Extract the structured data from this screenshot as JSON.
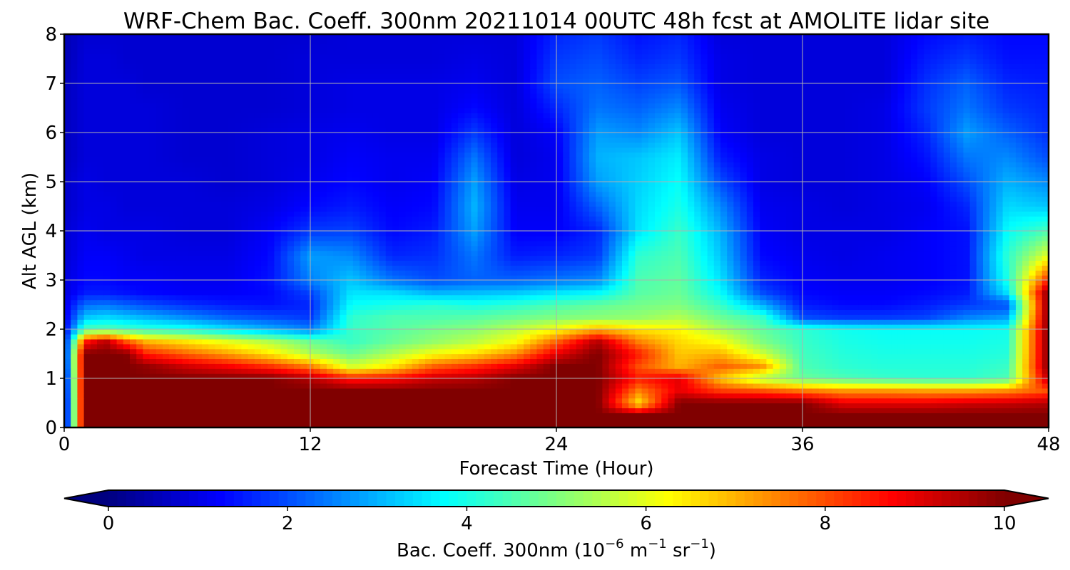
{
  "chart_data": {
    "type": "heatmap",
    "title": "WRF-Chem Bac. Coeff. 300nm  20211014 00UTC 48h fcst at AMOLITE lidar site",
    "xlabel": "Forecast Time (Hour)",
    "ylabel": "Alt AGL (km)",
    "xlim": [
      0,
      48
    ],
    "ylim": [
      0,
      8
    ],
    "x_ticks": [
      0,
      12,
      24,
      36,
      48
    ],
    "x_tick_labels": [
      "0",
      "12",
      "24",
      "36",
      "48"
    ],
    "y_ticks": [
      0,
      1,
      2,
      3,
      4,
      5,
      6,
      7,
      8
    ],
    "y_tick_labels": [
      "0",
      "1",
      "2",
      "3",
      "4",
      "5",
      "6",
      "7",
      "8"
    ],
    "grid": true,
    "colormap": "jet",
    "colorbar": {
      "orientation": "horizontal",
      "extend": "both",
      "range": [
        0,
        10
      ],
      "ticks": [
        0,
        2,
        4,
        6,
        8,
        10
      ],
      "tick_labels": [
        "0",
        "2",
        "4",
        "6",
        "8",
        "10"
      ],
      "label_main": "Bac. Coeff. 300nm  (10",
      "label_exp1": "−6",
      "label_mid": " m",
      "label_exp2": "−1",
      "label_mid2": " sr",
      "label_exp3": "−1",
      "label_end": ")"
    },
    "x_hours": [
      0,
      1,
      2,
      3,
      4,
      6,
      8,
      10,
      12,
      14,
      16,
      18,
      20,
      22,
      24,
      26,
      28,
      30,
      32,
      34,
      36,
      38,
      40,
      42,
      44,
      46,
      48
    ],
    "y_km": [
      0,
      0.25,
      0.5,
      0.75,
      1.0,
      1.25,
      1.5,
      1.75,
      2.0,
      2.25,
      2.5,
      2.75,
      3.0,
      3.5,
      4.0,
      4.5,
      5.0,
      5.5,
      6.0,
      6.5,
      7.0,
      7.5,
      8.0
    ],
    "values": [
      [
        0.5,
        10,
        10,
        10,
        10,
        10,
        10,
        10,
        10,
        10,
        10,
        10,
        10,
        10,
        10,
        10,
        10,
        10,
        10,
        10,
        10,
        10,
        10,
        10,
        10,
        10,
        10
      ],
      [
        0.5,
        10,
        10,
        10,
        10,
        10,
        10,
        10,
        10,
        10,
        10,
        10,
        10,
        10,
        10,
        10,
        10,
        10,
        10,
        10,
        10,
        10,
        10,
        10,
        10,
        10,
        10
      ],
      [
        0.5,
        10,
        10,
        10,
        10,
        10,
        10,
        10,
        10,
        10,
        10,
        10,
        10,
        10,
        10,
        10,
        6.5,
        10,
        10,
        10,
        10,
        9,
        9,
        9,
        9.2,
        9.3,
        9.5
      ],
      [
        0.6,
        10,
        10,
        10,
        10,
        10,
        10,
        10,
        10,
        10,
        10,
        10,
        10,
        10,
        10,
        10,
        7.5,
        9,
        8.2,
        8,
        7.6,
        7.3,
        7.3,
        7.2,
        7.2,
        7.4,
        8
      ],
      [
        0.7,
        10,
        10,
        10,
        10,
        10,
        10,
        10,
        9.5,
        8.5,
        8.7,
        9.3,
        9.5,
        10,
        10,
        10,
        8.5,
        9,
        6.8,
        5.5,
        4.8,
        4.5,
        4.3,
        4.2,
        4.2,
        4.5,
        9.5
      ],
      [
        0.9,
        10,
        10,
        10,
        9.8,
        9.2,
        8.8,
        8.3,
        7.5,
        5.8,
        6.5,
        7.8,
        8.3,
        9,
        10,
        10,
        8,
        7,
        7.8,
        7.3,
        4.5,
        4.2,
        4.1,
        4.1,
        4.1,
        4.3,
        10
      ],
      [
        1.0,
        10,
        10,
        10,
        8.5,
        7.8,
        7.2,
        6.5,
        5.5,
        4.8,
        5.5,
        6.2,
        6.6,
        7.4,
        9,
        10,
        8.5,
        6.8,
        7,
        5.8,
        4.4,
        4.1,
        4,
        4,
        4,
        4.1,
        10
      ],
      [
        1.1,
        8.5,
        9.5,
        8,
        7,
        6.5,
        6,
        5.5,
        4.8,
        4.3,
        4.8,
        5.2,
        5.6,
        6.2,
        7.8,
        9.5,
        7.5,
        6.6,
        6.2,
        5,
        4.3,
        4,
        3.9,
        3.9,
        3.9,
        4,
        10
      ],
      [
        1.1,
        4.5,
        4.6,
        4.4,
        4.2,
        4,
        3.5,
        3,
        2.5,
        4.3,
        4.6,
        4.9,
        5.1,
        5.6,
        6.2,
        7,
        6.5,
        6.3,
        5.4,
        4.7,
        4.2,
        3.9,
        3.8,
        3.8,
        3.8,
        3.9,
        10
      ],
      [
        1.0,
        3.2,
        3.4,
        3.2,
        3,
        2.6,
        2.2,
        2,
        1.8,
        4.2,
        4.5,
        4.5,
        4.6,
        4.8,
        5,
        5.1,
        5.2,
        5.5,
        4.8,
        4.3,
        2,
        1.8,
        1.8,
        1.9,
        2.5,
        2.8,
        10
      ],
      [
        1.0,
        2.3,
        2.4,
        2.2,
        2,
        1.7,
        1.5,
        1.4,
        1.6,
        3.8,
        4,
        4.2,
        4,
        4.2,
        4.5,
        4.7,
        4.9,
        5,
        4.3,
        3,
        1.5,
        1.3,
        1.3,
        1.5,
        1.8,
        2,
        10
      ],
      [
        0.9,
        1.5,
        1.5,
        1.4,
        1.3,
        1.2,
        1.2,
        1.3,
        1.9,
        3.5,
        3.4,
        3,
        3.1,
        3.2,
        3.5,
        3.7,
        4.6,
        4.8,
        3.8,
        2,
        1.3,
        1.2,
        1.2,
        1.3,
        1.5,
        3.5,
        10
      ],
      [
        0.9,
        1.3,
        1.3,
        1.2,
        1.2,
        1.1,
        1.1,
        1.4,
        2.5,
        3.2,
        2.4,
        2,
        2.2,
        2.2,
        2.4,
        2.6,
        4.5,
        4.7,
        3.5,
        1.6,
        1.2,
        1.1,
        1.1,
        1.2,
        1.4,
        4,
        8.5
      ],
      [
        0.8,
        1.2,
        1.2,
        1.1,
        1,
        1,
        1,
        1.3,
        2.8,
        2.6,
        1.6,
        1.7,
        2.4,
        1.5,
        1.6,
        1.8,
        4.2,
        4.5,
        3.2,
        1.3,
        1.1,
        1,
        1.1,
        1.2,
        1.4,
        4.2,
        6
      ],
      [
        0.8,
        1.1,
        1,
        1,
        1,
        0.9,
        0.9,
        1.2,
        1.8,
        1.9,
        1.3,
        1.5,
        2.8,
        1.2,
        1.2,
        1.6,
        3.5,
        4.3,
        3,
        1.2,
        1,
        1,
        1,
        1.2,
        1.4,
        3.8,
        4.5
      ],
      [
        0.7,
        1,
        1,
        0.9,
        0.9,
        0.9,
        0.9,
        1,
        1.3,
        1.5,
        1.2,
        1.3,
        3,
        1.1,
        1.1,
        2.2,
        3.4,
        4,
        2.6,
        1.1,
        1,
        0.9,
        1,
        1.1,
        1.6,
        3.4,
        3.2
      ],
      [
        0.7,
        1,
        0.9,
        0.9,
        0.9,
        0.9,
        0.8,
        0.9,
        1.1,
        1.3,
        1.1,
        1.2,
        2.8,
        1,
        1.1,
        2.8,
        3.3,
        3.8,
        2,
        1,
        0.9,
        0.9,
        1,
        1.2,
        2,
        3,
        2.6
      ],
      [
        0.6,
        0.9,
        0.9,
        0.9,
        0.9,
        0.8,
        0.8,
        0.9,
        1,
        1.2,
        1.1,
        1.1,
        2.4,
        0.9,
        1.1,
        3,
        3.2,
        3.6,
        1.5,
        1,
        0.9,
        0.9,
        1,
        1.4,
        2.4,
        2.6,
        2
      ],
      [
        0.6,
        0.9,
        0.9,
        0.9,
        0.9,
        0.8,
        0.8,
        0.9,
        1,
        1.1,
        1,
        1,
        1.8,
        0.9,
        1.2,
        2.8,
        2.6,
        3.2,
        1.2,
        0.9,
        0.9,
        0.9,
        1,
        1.6,
        2.8,
        2.2,
        1.7
      ],
      [
        0.6,
        0.9,
        0.9,
        0.9,
        0.9,
        0.8,
        0.8,
        0.8,
        0.9,
        1,
        1,
        1,
        1.3,
        0.9,
        1.6,
        2.4,
        2.2,
        2.6,
        1.1,
        0.9,
        0.9,
        0.9,
        1,
        1.8,
        2.4,
        1.8,
        1.6
      ],
      [
        0.6,
        0.9,
        0.9,
        0.9,
        0.8,
        0.8,
        0.8,
        0.8,
        0.9,
        1,
        1,
        1,
        1.1,
        0.9,
        2,
        2.2,
        1.9,
        2.1,
        1,
        0.9,
        0.9,
        0.9,
        0.9,
        1.7,
        2.2,
        1.6,
        1.5
      ],
      [
        0.5,
        0.9,
        0.9,
        0.8,
        0.8,
        0.8,
        0.8,
        0.8,
        0.9,
        0.9,
        0.9,
        0.9,
        1,
        0.9,
        1.8,
        2,
        1.6,
        1.8,
        1,
        0.9,
        0.9,
        0.9,
        0.9,
        1.5,
        1.8,
        1.4,
        1.4
      ],
      [
        0.5,
        0.8,
        0.8,
        0.8,
        0.8,
        0.8,
        0.8,
        0.8,
        0.8,
        0.9,
        0.9,
        0.9,
        0.9,
        0.9,
        1.6,
        1.8,
        1.4,
        1.6,
        0.9,
        0.9,
        0.9,
        0.9,
        0.9,
        1.3,
        1.5,
        1.3,
        1.3
      ]
    ]
  }
}
